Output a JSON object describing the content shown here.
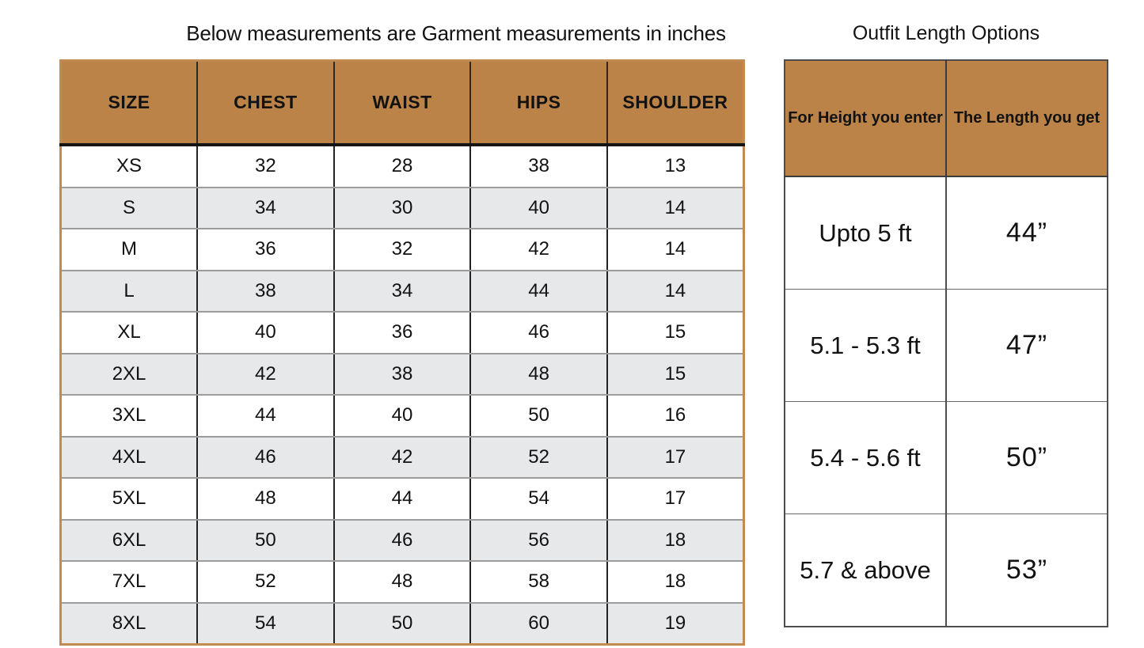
{
  "size_chart": {
    "title": "Below measurements are Garment measurements in inches",
    "headers": [
      "SIZE",
      "CHEST",
      "WAIST",
      "HIPS",
      "SHOULDER"
    ],
    "rows": [
      {
        "size": "XS",
        "chest": "32",
        "waist": "28",
        "hips": "38",
        "shoulder": "13"
      },
      {
        "size": "S",
        "chest": "34",
        "waist": "30",
        "hips": "40",
        "shoulder": "14"
      },
      {
        "size": "M",
        "chest": "36",
        "waist": "32",
        "hips": "42",
        "shoulder": "14"
      },
      {
        "size": "L",
        "chest": "38",
        "waist": "34",
        "hips": "44",
        "shoulder": "14"
      },
      {
        "size": "XL",
        "chest": "40",
        "waist": "36",
        "hips": "46",
        "shoulder": "15"
      },
      {
        "size": "2XL",
        "chest": "42",
        "waist": "38",
        "hips": "48",
        "shoulder": "15"
      },
      {
        "size": "3XL",
        "chest": "44",
        "waist": "40",
        "hips": "50",
        "shoulder": "16"
      },
      {
        "size": "4XL",
        "chest": "46",
        "waist": "42",
        "hips": "52",
        "shoulder": "17"
      },
      {
        "size": "5XL",
        "chest": "48",
        "waist": "44",
        "hips": "54",
        "shoulder": "17"
      },
      {
        "size": "6XL",
        "chest": "50",
        "waist": "46",
        "hips": "56",
        "shoulder": "18"
      },
      {
        "size": "7XL",
        "chest": "52",
        "waist": "48",
        "hips": "58",
        "shoulder": "18"
      },
      {
        "size": "8XL",
        "chest": "54",
        "waist": "50",
        "hips": "60",
        "shoulder": "19"
      }
    ]
  },
  "length_chart": {
    "title": "Outfit Length Options",
    "headers": [
      "For Height you enter",
      "The Length you get"
    ],
    "rows": [
      {
        "height": "Upto 5 ft",
        "length": "44”"
      },
      {
        "height": "5.1 - 5.3 ft",
        "length": "47”"
      },
      {
        "height": "5.4 - 5.6 ft",
        "length": "50”"
      },
      {
        "height": "5.7 & above",
        "length": "53”"
      }
    ]
  },
  "colors": {
    "header_fill": "#bb8347",
    "alt_row_fill": "#e7e8ea",
    "size_table_border": "#c28b52",
    "length_table_border": "#4d4d4d",
    "text": "#121212"
  }
}
